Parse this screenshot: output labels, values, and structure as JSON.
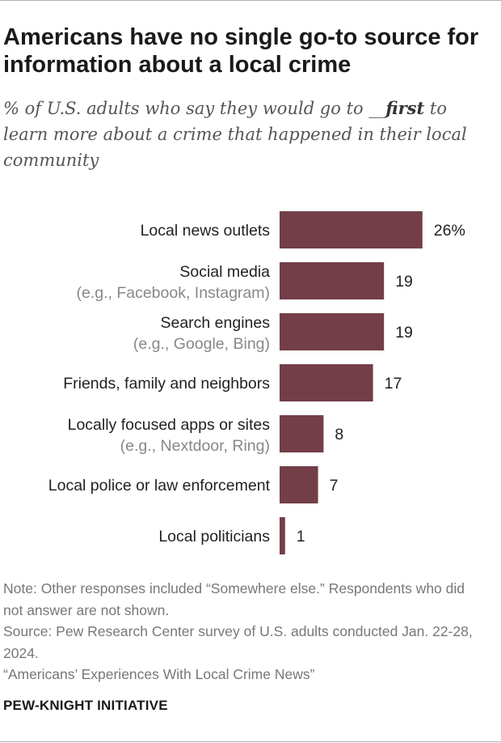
{
  "header": {
    "title": "Americans have no single go-to source for information about a local crime",
    "subtitle_before": "% of U.S. adults who say they would go to ",
    "subtitle_blank": "__",
    "subtitle_emphasis": "first",
    "subtitle_after": " to learn more about a crime that happened in their local community"
  },
  "chart_data": {
    "type": "bar",
    "orientation": "horizontal",
    "categories": [
      {
        "label": "Local news outlets",
        "sublabel": ""
      },
      {
        "label": "Social media",
        "sublabel": "(e.g., Facebook, Instagram)"
      },
      {
        "label": "Search engines",
        "sublabel": "(e.g., Google, Bing)"
      },
      {
        "label": "Friends, family and neighbors",
        "sublabel": ""
      },
      {
        "label": "Locally focused apps or sites",
        "sublabel": "(e.g., Nextdoor, Ring)"
      },
      {
        "label": "Local police or law enforcement",
        "sublabel": ""
      },
      {
        "label": "Local politicians",
        "sublabel": ""
      }
    ],
    "values": [
      26,
      19,
      19,
      17,
      8,
      7,
      1
    ],
    "value_labels": [
      "26%",
      "19",
      "19",
      "17",
      "8",
      "7",
      "1"
    ],
    "bar_color": "#733e48",
    "label_color": "#222222",
    "sublabel_color": "#888888",
    "xlim": [
      0,
      30
    ],
    "grid": false
  },
  "footer": {
    "note": "Note: Other responses included “Somewhere else.” Respondents who did not answer are not shown.",
    "source": "Source: Pew Research Center survey of U.S. adults conducted Jan. 22-28, 2024.",
    "report": "“Americans’ Experiences With Local Crime News”",
    "brand": "PEW-KNIGHT INITIATIVE"
  }
}
